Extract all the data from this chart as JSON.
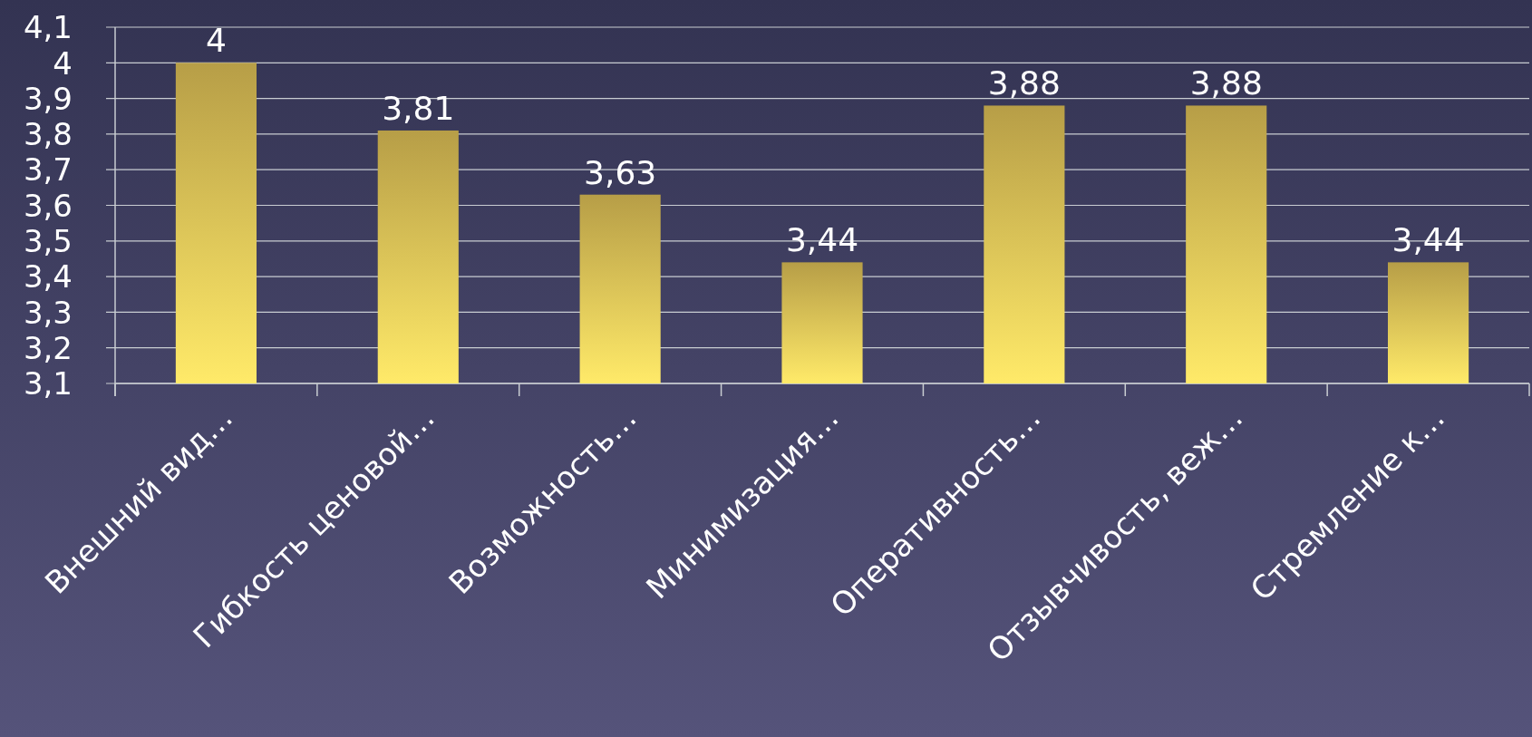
{
  "chart_data": {
    "type": "bar",
    "categories": [
      "Внешний вид…",
      "Гибкость  ценовой…",
      "Возможность…",
      "Минимизация…",
      "Оперативность…",
      "Отзывчивость, веж…",
      "Стремление к…"
    ],
    "values": [
      4,
      3.81,
      3.63,
      3.44,
      3.88,
      3.88,
      3.44
    ],
    "value_labels": [
      "4",
      "3,81",
      "3,63",
      "3,44",
      "3,88",
      "3,88",
      "3,44"
    ],
    "color": "#e3c458",
    "ylim": [
      3.1,
      4.1
    ],
    "yticks": [
      {
        "value": 3.1,
        "label": "3,1"
      },
      {
        "value": 3.2,
        "label": "3,2"
      },
      {
        "value": 3.3,
        "label": "3,3"
      },
      {
        "value": 3.4,
        "label": "3,4"
      },
      {
        "value": 3.5,
        "label": "3,5"
      },
      {
        "value": 3.6,
        "label": "3,6"
      },
      {
        "value": 3.7,
        "label": "3,7"
      },
      {
        "value": 3.8,
        "label": "3,8"
      },
      {
        "value": 3.9,
        "label": "3,9"
      },
      {
        "value": 4,
        "label": "4"
      },
      {
        "value": 4.1,
        "label": "4,1"
      }
    ],
    "grid": "y"
  }
}
